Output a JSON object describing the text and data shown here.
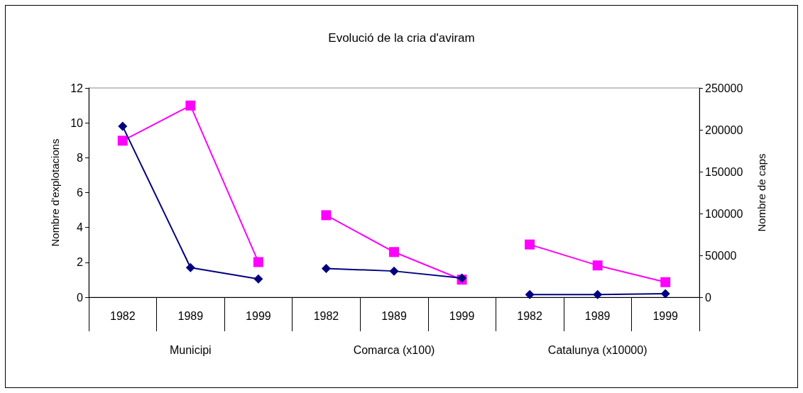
{
  "chart_data": {
    "type": "line",
    "title": "Evolució de la cria d'aviram",
    "ylabel": "Nombre d'explotacions",
    "y2label": "Nombre de caps",
    "categories": [
      "1982",
      "1989",
      "1999",
      "1982",
      "1989",
      "1999",
      "1982",
      "1989",
      "1999"
    ],
    "annotations": [
      "Municipi",
      "Comarca (x100)",
      "Catalunya (x10000)"
    ],
    "series": [
      {
        "color": "#000080",
        "marker": "diamond",
        "values": [
          9.8,
          1.7,
          1.05,
          null,
          null,
          null,
          null,
          null,
          null
        ]
      },
      {
        "color": "#000080",
        "marker": "diamond",
        "values": [
          null,
          null,
          null,
          1.65,
          1.5,
          1.1,
          null,
          null,
          null
        ]
      },
      {
        "color": "#000080",
        "marker": "diamond",
        "values": [
          null,
          null,
          null,
          null,
          null,
          null,
          0.15,
          0.15,
          0.2
        ]
      },
      {
        "color": "#ff00ff",
        "marker": "square",
        "axis": "y2",
        "values": [
          187000,
          229000,
          42000,
          null,
          null,
          null,
          null,
          null,
          null
        ]
      },
      {
        "color": "#ff00ff",
        "marker": "square",
        "axis": "y2",
        "values": [
          null,
          null,
          null,
          98000,
          54000,
          21000,
          null,
          null,
          null
        ]
      },
      {
        "color": "#ff00ff",
        "marker": "square",
        "axis": "y2",
        "values": [
          null,
          null,
          null,
          null,
          null,
          null,
          63000,
          38000,
          18000
        ]
      }
    ],
    "ylim": [
      0,
      12
    ],
    "yticks": [
      0,
      2,
      4,
      6,
      8,
      10,
      12
    ],
    "y2lim": [
      0,
      250000
    ],
    "y2ticks": [
      0,
      50000,
      100000,
      150000,
      200000,
      250000
    ],
    "grid": false,
    "line_style": "solid"
  }
}
